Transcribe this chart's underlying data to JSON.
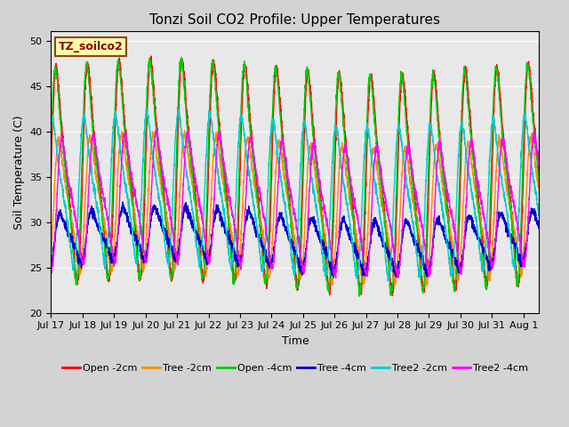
{
  "title": "Tonzi Soil CO2 Profile: Upper Temperatures",
  "xlabel": "Time",
  "ylabel": "Soil Temperature (C)",
  "ylim": [
    20,
    51
  ],
  "xlim_start": 0,
  "xlim_end": 15.5,
  "annotation": "TZ_soilco2",
  "x_tick_labels": [
    "Jul 17",
    "Jul 18",
    "Jul 19",
    "Jul 20",
    "Jul 21",
    "Jul 22",
    "Jul 23",
    "Jul 24",
    "Jul 25",
    "Jul 26",
    "Jul 27",
    "Jul 28",
    "Jul 29",
    "Jul 30",
    "Jul 31",
    "Aug 1"
  ],
  "series": [
    {
      "label": "Open -2cm",
      "color": "#ff0000",
      "amplitude": 14.5,
      "phase": 0.0,
      "baseline": 35.0
    },
    {
      "label": "Tree -2cm",
      "color": "#ff8c00",
      "amplitude": 9.0,
      "phase": 0.08,
      "baseline": 31.5
    },
    {
      "label": "Open -4cm",
      "color": "#00cc00",
      "amplitude": 14.5,
      "phase": -0.03,
      "baseline": 35.0
    },
    {
      "label": "Tree -4cm",
      "color": "#0000cc",
      "amplitude": 3.5,
      "phase": 0.12,
      "baseline": 28.0
    },
    {
      "label": "Tree2 -2cm",
      "color": "#00cccc",
      "amplitude": 10.0,
      "phase": -0.12,
      "baseline": 33.0
    },
    {
      "label": "Tree2 -4cm",
      "color": "#ff00ff",
      "amplitude": 8.5,
      "phase": 0.18,
      "baseline": 32.0
    }
  ],
  "background_color": "#d3d3d3",
  "plot_bg_color": "#e8e8e8",
  "title_fontsize": 11,
  "label_fontsize": 9,
  "tick_fontsize": 8,
  "linewidth": 1.0
}
